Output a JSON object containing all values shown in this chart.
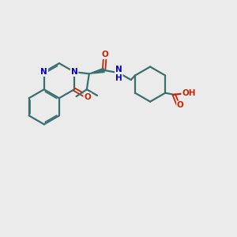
{
  "background_color": "#ebebeb",
  "bond_color": "#3a7070",
  "bond_lw": 1.6,
  "n_color": "#0000cc",
  "o_color": "#cc2200",
  "nh_color": "#3a7070",
  "figsize": [
    3.0,
    3.0
  ],
  "dpi": 100,
  "xlim": [
    0,
    10
  ],
  "ylim": [
    0,
    10
  ]
}
